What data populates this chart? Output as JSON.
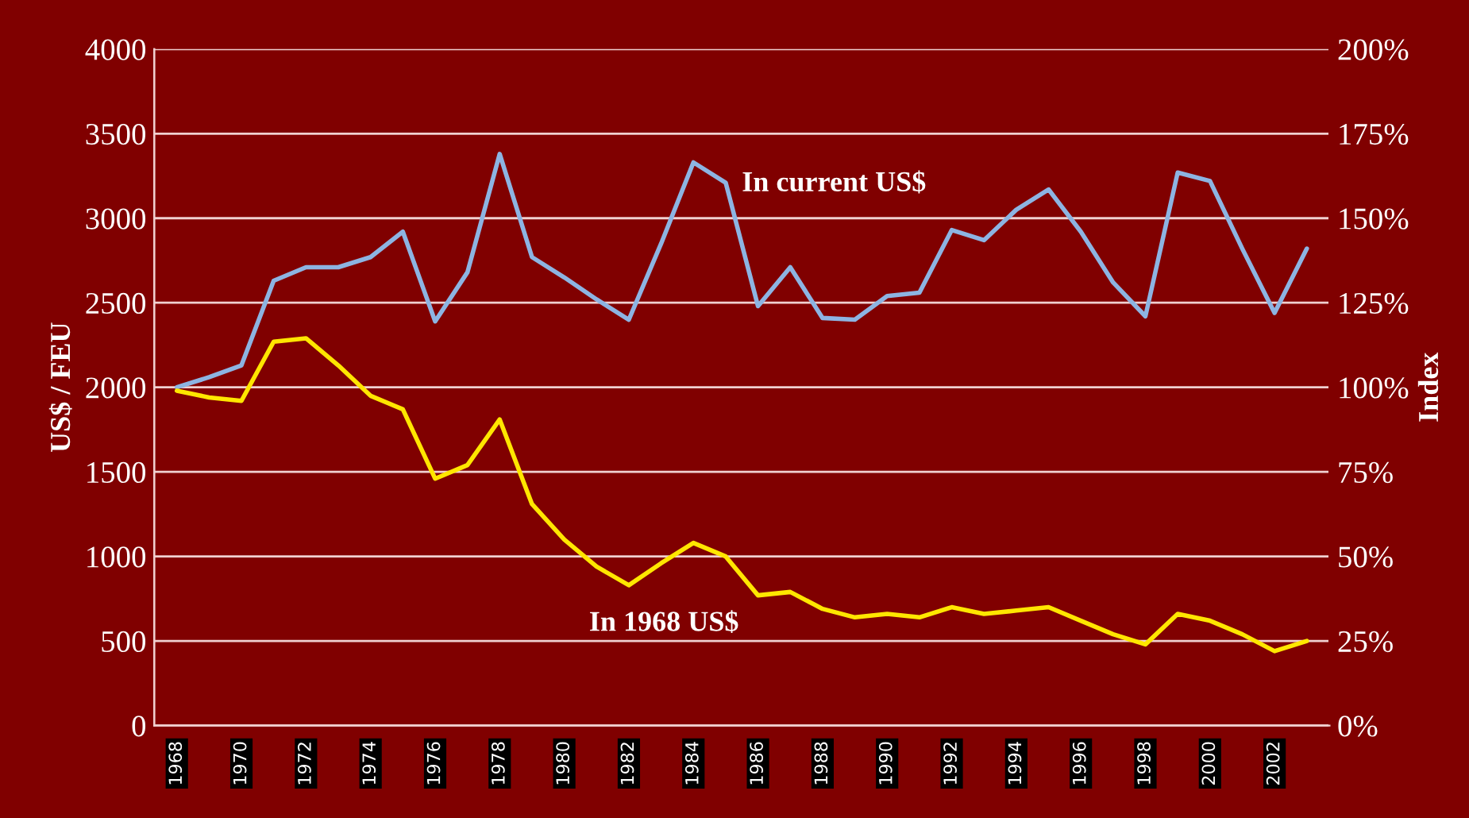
{
  "chart_data": {
    "type": "line",
    "ylabel": "US$ / FEU",
    "y2label": "Index",
    "categories": [
      "1968",
      null,
      "1970",
      null,
      "1972",
      null,
      "1974",
      null,
      "1976",
      null,
      "1978",
      null,
      "1980",
      null,
      "1982",
      null,
      "1984",
      null,
      "1986",
      null,
      "1988",
      null,
      "1990",
      null,
      "1992",
      null,
      "1994",
      null,
      "1996",
      null,
      "1998",
      null,
      "2000",
      null,
      "2002",
      null
    ],
    "series": [
      {
        "name": "In current US$",
        "color": "#8db4e2",
        "values": [
          2000,
          2060,
          2130,
          2630,
          2710,
          2710,
          2770,
          2920,
          2390,
          2680,
          3380,
          2770,
          2650,
          2520,
          2400,
          2850,
          3330,
          3210,
          2480,
          2710,
          2410,
          2400,
          2540,
          2560,
          2930,
          2870,
          3050,
          3170,
          2920,
          2620,
          2420,
          3270,
          3220,
          2820,
          2440,
          2820
        ]
      },
      {
        "name": "In 1968 US$",
        "color": "#ffe600",
        "values": [
          1980,
          1940,
          1920,
          2270,
          2290,
          2130,
          1950,
          1870,
          1460,
          1540,
          1810,
          1310,
          1100,
          940,
          830,
          960,
          1080,
          1000,
          770,
          790,
          690,
          640,
          660,
          640,
          700,
          660,
          680,
          700,
          620,
          540,
          480,
          660,
          620,
          540,
          440,
          500
        ]
      }
    ],
    "ylim": [
      0,
      4000
    ],
    "yticks": [
      0,
      500,
      1000,
      1500,
      2000,
      2500,
      3000,
      3500,
      4000
    ],
    "y2lim": [
      0,
      200
    ],
    "y2ticks": [
      {
        "value": 0,
        "label": "0%"
      },
      {
        "value": 25,
        "label": "25%"
      },
      {
        "value": 50,
        "label": "50%"
      },
      {
        "value": 75,
        "label": "75%"
      },
      {
        "value": 100,
        "label": "100%"
      },
      {
        "value": 125,
        "label": "125%"
      },
      {
        "value": 150,
        "label": "150%"
      },
      {
        "value": 175,
        "label": "175%"
      },
      {
        "value": 200,
        "label": "200%"
      }
    ],
    "grid": "y",
    "legend": false,
    "marker": "none",
    "line_style": "solid"
  }
}
